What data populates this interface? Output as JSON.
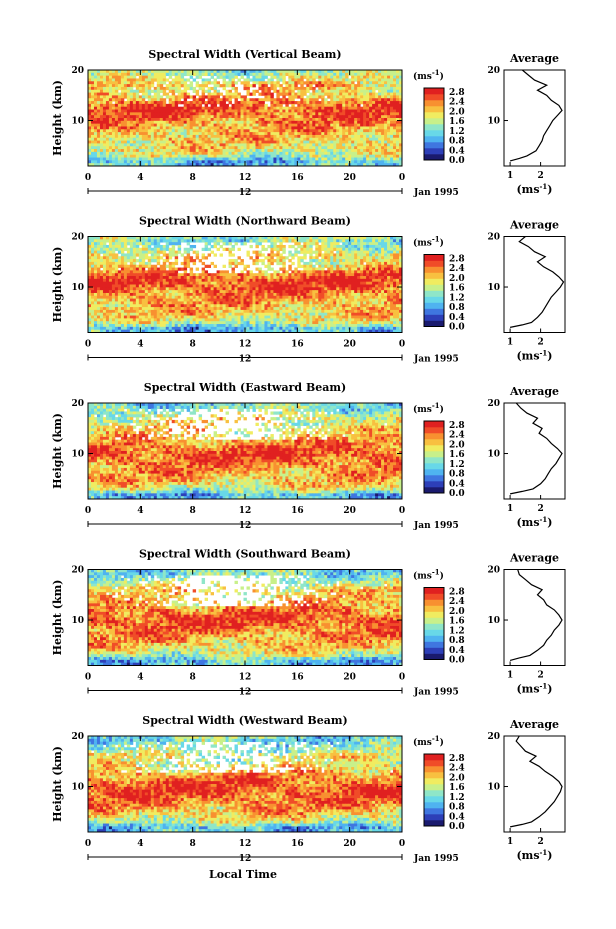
{
  "chart_data": [
    {
      "type": "heatmap",
      "title": "Spectral Width (Vertical Beam)",
      "ylabel": "Height (km)",
      "yticks": [
        "20",
        "10"
      ],
      "xticks": [
        "0",
        "4",
        "8",
        "12",
        "16",
        "20",
        "0"
      ],
      "xlim": [
        0,
        24
      ],
      "ylim": [
        1,
        20
      ],
      "day_label": "12",
      "date_label": "Jan 1995",
      "colorbar": {
        "unit": "(ms",
        "unit_sup": "-1",
        "unit_close": ")",
        "labels": [
          "2.8",
          "2.4",
          "2.0",
          "1.6",
          "1.2",
          "0.8",
          "0.4",
          "0.0"
        ]
      },
      "profile": {
        "title": "Average",
        "xlabel": "(ms",
        "xlabel_sup": "-1",
        "xlabel_close": ")",
        "xticks": [
          "1",
          "2"
        ],
        "yticks": [
          "20",
          "10"
        ],
        "xlim": [
          0.8,
          2.8
        ],
        "height": [
          2,
          2.5,
          3,
          4,
          5,
          6,
          7,
          8,
          9,
          10,
          11,
          12,
          13,
          14,
          15,
          16,
          17,
          18,
          19,
          20
        ],
        "width": [
          1.0,
          1.3,
          1.55,
          1.85,
          1.95,
          2.05,
          2.1,
          2.2,
          2.3,
          2.4,
          2.55,
          2.7,
          2.6,
          2.35,
          2.2,
          1.9,
          2.2,
          1.8,
          1.6,
          1.4
        ]
      }
    },
    {
      "type": "heatmap",
      "title": "Spectral Width (Northward Beam)",
      "ylabel": "Height (km)",
      "yticks": [
        "20",
        "10"
      ],
      "xticks": [
        "0",
        "4",
        "8",
        "12",
        "16",
        "20",
        "0"
      ],
      "xlim": [
        0,
        24
      ],
      "ylim": [
        1,
        20
      ],
      "day_label": "12",
      "date_label": "Jan 1995",
      "colorbar": {
        "unit": "(ms",
        "unit_sup": "-1",
        "unit_close": ")",
        "labels": [
          "2.8",
          "2.4",
          "2.0",
          "1.6",
          "1.2",
          "0.8",
          "0.4",
          "0.0"
        ]
      },
      "profile": {
        "title": "Average",
        "xlabel": "(ms",
        "xlabel_sup": "-1",
        "xlabel_close": ")",
        "xticks": [
          "1",
          "2"
        ],
        "yticks": [
          "20",
          "10"
        ],
        "xlim": [
          0.8,
          2.8
        ],
        "height": [
          2,
          2.5,
          3,
          4,
          5,
          6,
          7,
          8,
          9,
          10,
          11,
          12,
          13,
          14,
          15,
          16,
          17,
          18,
          19,
          20
        ],
        "width": [
          1.0,
          1.4,
          1.7,
          1.9,
          2.05,
          2.15,
          2.25,
          2.35,
          2.5,
          2.65,
          2.75,
          2.6,
          2.4,
          2.1,
          1.9,
          2.15,
          1.8,
          1.6,
          1.3,
          1.5
        ]
      }
    },
    {
      "type": "heatmap",
      "title": "Spectral Width (Eastward Beam)",
      "ylabel": "Height (km)",
      "yticks": [
        "20",
        "10"
      ],
      "xticks": [
        "0",
        "4",
        "8",
        "12",
        "16",
        "20",
        "0"
      ],
      "xlim": [
        0,
        24
      ],
      "ylim": [
        1,
        20
      ],
      "day_label": "12",
      "date_label": "Jan 1995",
      "colorbar": {
        "unit": "(ms",
        "unit_sup": "-1",
        "unit_close": ")",
        "labels": [
          "2.8",
          "2.4",
          "2.0",
          "1.6",
          "1.2",
          "0.8",
          "0.4",
          "0.0"
        ]
      },
      "profile": {
        "title": "Average",
        "xlabel": "(ms",
        "xlabel_sup": "-1",
        "xlabel_close": ")",
        "xticks": [
          "1",
          "2"
        ],
        "yticks": [
          "20",
          "10"
        ],
        "xlim": [
          0.8,
          2.8
        ],
        "height": [
          2,
          2.5,
          3,
          4,
          5,
          6,
          7,
          8,
          9,
          10,
          11,
          12,
          13,
          14,
          15,
          16,
          17,
          18,
          19,
          20
        ],
        "width": [
          1.0,
          1.4,
          1.75,
          2.0,
          2.15,
          2.25,
          2.35,
          2.5,
          2.6,
          2.7,
          2.55,
          2.35,
          2.2,
          1.95,
          2.05,
          1.75,
          1.9,
          1.55,
          1.35,
          1.2
        ]
      }
    },
    {
      "type": "heatmap",
      "title": "Spectral Width (Southward Beam)",
      "ylabel": "Height (km)",
      "yticks": [
        "20",
        "10"
      ],
      "xticks": [
        "0",
        "4",
        "8",
        "12",
        "16",
        "20",
        "0"
      ],
      "xlim": [
        0,
        24
      ],
      "ylim": [
        1,
        20
      ],
      "day_label": "12",
      "date_label": "Jan 1995",
      "colorbar": {
        "unit": "(ms",
        "unit_sup": "-1",
        "unit_close": ")",
        "labels": [
          "2.8",
          "2.4",
          "2.0",
          "1.6",
          "1.2",
          "0.8",
          "0.4",
          "0.0"
        ]
      },
      "profile": {
        "title": "Average",
        "xlabel": "(ms",
        "xlabel_sup": "-1",
        "xlabel_close": ")",
        "xticks": [
          "1",
          "2"
        ],
        "yticks": [
          "20",
          "10"
        ],
        "xlim": [
          0.8,
          2.8
        ],
        "height": [
          2,
          2.5,
          3,
          4,
          5,
          6,
          7,
          8,
          9,
          10,
          11,
          12,
          13,
          14,
          15,
          16,
          17,
          18,
          19,
          20
        ],
        "width": [
          1.0,
          1.3,
          1.65,
          1.9,
          2.1,
          2.2,
          2.35,
          2.45,
          2.6,
          2.7,
          2.6,
          2.45,
          2.2,
          2.1,
          1.9,
          2.05,
          1.7,
          1.5,
          1.3,
          1.25
        ]
      }
    },
    {
      "type": "heatmap",
      "title": "Spectral Width (Westward Beam)",
      "ylabel": "Height (km)",
      "yticks": [
        "20",
        "10"
      ],
      "xticks": [
        "0",
        "4",
        "8",
        "12",
        "16",
        "20",
        "0"
      ],
      "xlim": [
        0,
        24
      ],
      "ylim": [
        1,
        20
      ],
      "day_label": "12",
      "date_label": "Jan 1995",
      "colorbar": {
        "unit": "(ms",
        "unit_sup": "-1",
        "unit_close": ")",
        "labels": [
          "2.8",
          "2.4",
          "2.0",
          "1.6",
          "1.2",
          "0.8",
          "0.4",
          "0.0"
        ]
      },
      "profile": {
        "title": "Average",
        "xlabel": "(ms",
        "xlabel_sup": "-1",
        "xlabel_close": ")",
        "xticks": [
          "1",
          "2"
        ],
        "yticks": [
          "20",
          "10"
        ],
        "xlim": [
          0.8,
          2.8
        ],
        "height": [
          2,
          2.5,
          3,
          4,
          5,
          6,
          7,
          8,
          9,
          10,
          11,
          12,
          13,
          14,
          15,
          16,
          17,
          18,
          19,
          20
        ],
        "width": [
          1.0,
          1.4,
          1.7,
          1.95,
          2.15,
          2.3,
          2.45,
          2.55,
          2.65,
          2.7,
          2.6,
          2.4,
          2.15,
          1.95,
          1.65,
          1.85,
          1.5,
          1.35,
          1.2,
          1.3
        ]
      }
    }
  ],
  "figure": {
    "xlabel": "Local Time",
    "colormap": [
      "#1a1a6e",
      "#2d3fb8",
      "#3f76e0",
      "#4fb3f0",
      "#68d8e8",
      "#8fe6c8",
      "#c8f08a",
      "#f0ec60",
      "#f8c040",
      "#f89030",
      "#f04c28",
      "#e02020"
    ]
  }
}
